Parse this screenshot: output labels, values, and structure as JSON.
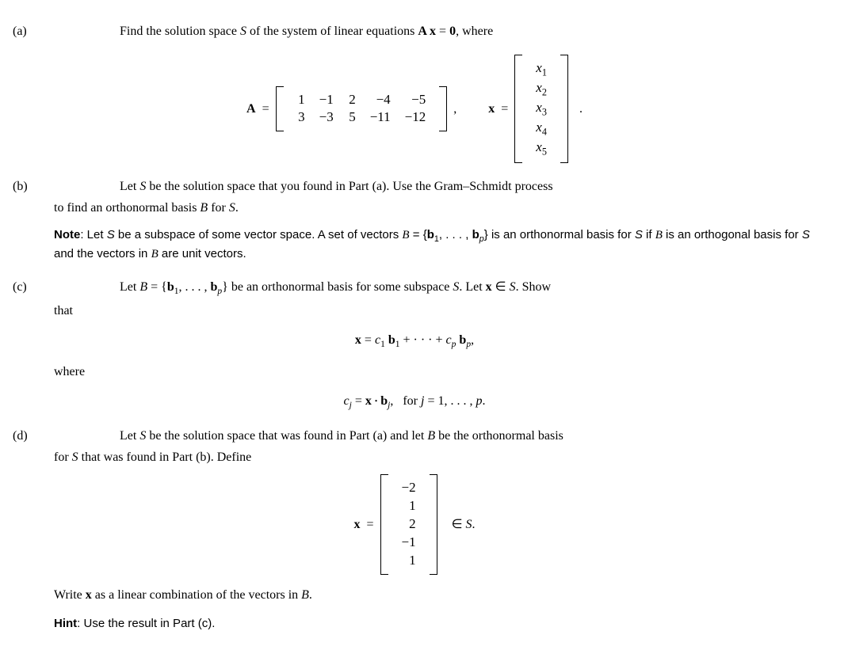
{
  "parts": {
    "a": {
      "label": "(a)",
      "text": "Find the solution space <span class=\"ital\">S</span> of the system of linear equations <span class=\"bold-it\">A x</span> = <span class=\"bold-it\">0</span>, where",
      "A_label": "A",
      "equals": "=",
      "A_matrix_cols": 5,
      "A_matrix_rows": 2,
      "A_matrix": [
        "1",
        "−1",
        "2",
        "−4",
        "−5",
        "3",
        "−3",
        "5",
        "−11",
        "−12"
      ],
      "x_label": "x",
      "x_vector": [
        "x<span class=\"sub\">1</span>",
        "x<span class=\"sub\">2</span>",
        "x<span class=\"sub\">3</span>",
        "x<span class=\"sub\">4</span>",
        "x<span class=\"sub\">5</span>"
      ],
      "comma": ",",
      "period": "."
    },
    "b": {
      "label": "(b)",
      "text_lead": "Let <span class=\"ital\">S</span> be the solution space that you found in Part (a). Use the Gram–Schmidt process",
      "text_cont": "to find an orthonormal basis <span class=\"cal\">B</span> for <span class=\"ital\">S</span>.",
      "note_lead": "Note",
      "note_text": ": Let <span class=\"ital\">S</span> be a subspace of some vector space. A set of vectors <span class=\"ital cal\">B</span> = {<span class=\"bold-it\">b</span><span class=\"sub\">1</span>, . . . , <span class=\"bold-it\">b</span><span class=\"ital sub\">p</span>} is an orthonormal basis for <span class=\"ital\">S</span> if <span class=\"ital cal\">B</span> is an orthogonal basis for <span class=\"ital\">S</span> and the vectors in <span class=\"ital cal\">B</span> are unit vectors."
    },
    "c": {
      "label": "(c)",
      "text_lead": "Let <span class=\"cal\">B</span> = {<span class=\"bold-it\">b</span><span class=\"sub\">1</span>, . . . , <span class=\"bold-it\">b</span><span class=\"ital sub\">p</span>} be an orthonormal basis for some subspace <span class=\"ital\">S</span>. Let <span class=\"bold-it\">x</span> ∈ <span class=\"ital\">S</span>. Show",
      "text_cont": "that",
      "eq1": "<span class=\"bold-it\">x</span> = <span class=\"ital\">c</span><span class=\"sub\">1</span> <span class=\"bold-it\">b</span><span class=\"sub\">1</span> + · · · + <span class=\"ital\">c</span><span class=\"ital sub\">p</span> <span class=\"bold-it\">b</span><span class=\"ital sub\">p</span>,",
      "where": "where",
      "eq2": "<span class=\"ital\">c</span><span class=\"ital sub\">j</span> = <span class=\"bold-it\">x</span> <span style=\"font-size:0.6em;vertical-align:middle;\">•</span> <span class=\"bold-it\">b</span><span class=\"ital sub\">j</span>,&nbsp;&nbsp;&nbsp;for <span class=\"ital\">j</span> = 1, . . . , <span class=\"ital\">p</span>."
    },
    "d": {
      "label": "(d)",
      "text_lead": "Let <span class=\"ital\">S</span> be the solution space that was found in Part (a) and let <span class=\"cal\">B</span> be the orthonormal basis",
      "text_cont": "for <span class=\"ital\">S</span> that was found in Part (b). Define",
      "x_label": "x",
      "equals": "=",
      "x_vector": [
        "−2",
        "1",
        "2",
        "−1",
        "1"
      ],
      "membership": "∈ <span class=\"ital\">S</span>.",
      "text_after": "Write <span class=\"bold-it\">x</span> as a linear combination of the vectors in <span class=\"cal\">B</span>.",
      "hint_lead": "Hint",
      "hint_text": ": Use the result in Part (c)."
    }
  },
  "colors": {
    "text": "#000000",
    "background": "#ffffff"
  },
  "fonts": {
    "serif": "Palatino Linotype",
    "sans": "Arial",
    "base_size_pt": 12
  }
}
